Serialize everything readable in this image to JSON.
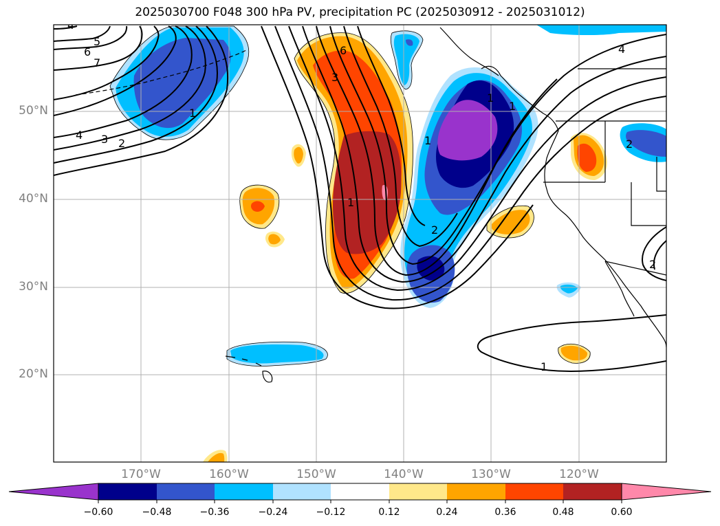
{
  "title": "2025030700 F048 300 hPa PV, precipitation PC (2025030912 - 2025031012)",
  "lat_labels": [
    "50°N",
    "40°N",
    "30°N",
    "20°N"
  ],
  "lon_labels": [
    "170°W",
    "160°W",
    "150°W",
    "140°W",
    "130°W",
    "120°W"
  ],
  "contour_labels": [
    "4",
    "5",
    "6",
    "7",
    "4",
    "3",
    "2",
    "1",
    "6",
    "3",
    "1",
    "2",
    "1",
    "1",
    "1",
    "2",
    "4",
    "1",
    "2"
  ],
  "colorbar": {
    "ticks": [
      "−0.60",
      "−0.48",
      "−0.36",
      "−0.24",
      "−0.12",
      "0.12",
      "0.24",
      "0.36",
      "0.48",
      "0.60"
    ],
    "colors": [
      "#9933cc",
      "#00008b",
      "#3355cc",
      "#00bfff",
      "#b0e2ff",
      "#ffffff",
      "#ffe88a",
      "#ffa500",
      "#ff4500",
      "#b22222",
      "#ff88aa"
    ]
  },
  "fill_colors": {
    "neg_light": "#b0e2ff",
    "neg_cyan": "#00bfff",
    "neg_blue": "#3355cc",
    "neg_navy": "#00008b",
    "neg_purple": "#9933cc",
    "pos_yellow": "#ffe88a",
    "pos_orange": "#ffa500",
    "pos_redorange": "#ff4500",
    "pos_darkred": "#b22222",
    "pos_pink": "#ff88aa"
  }
}
